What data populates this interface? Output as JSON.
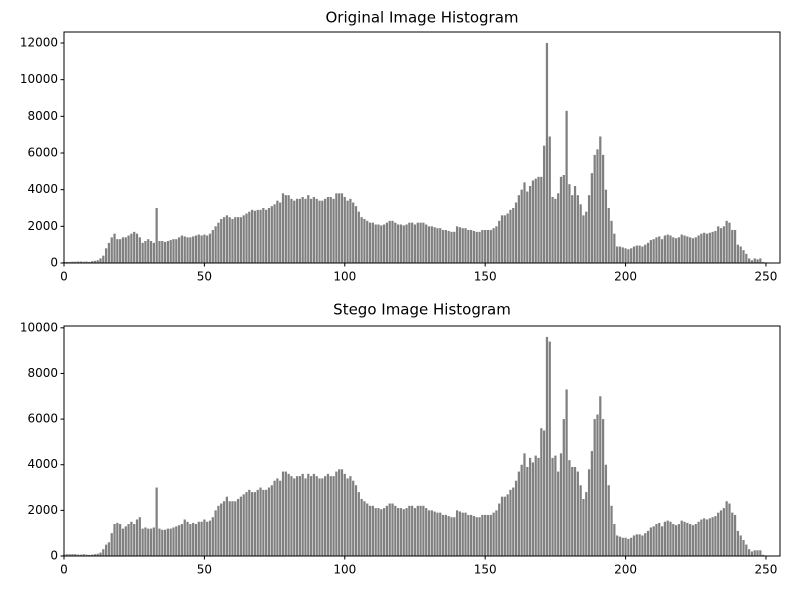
{
  "chart_data": [
    {
      "type": "bar",
      "title": "Original Image Histogram",
      "color": "#808080",
      "x": [
        0,
        1,
        2,
        3,
        4,
        5,
        6,
        7,
        8,
        9,
        10,
        11,
        12,
        13,
        14,
        15,
        16,
        17,
        18,
        19,
        20,
        21,
        22,
        23,
        24,
        25,
        26,
        27,
        28,
        29,
        30,
        31,
        32,
        33,
        34,
        35,
        36,
        37,
        38,
        39,
        40,
        41,
        42,
        43,
        44,
        45,
        46,
        47,
        48,
        49,
        50,
        51,
        52,
        53,
        54,
        55,
        56,
        57,
        58,
        59,
        60,
        61,
        62,
        63,
        64,
        65,
        66,
        67,
        68,
        69,
        70,
        71,
        72,
        73,
        74,
        75,
        76,
        77,
        78,
        79,
        80,
        81,
        82,
        83,
        84,
        85,
        86,
        87,
        88,
        89,
        90,
        91,
        92,
        93,
        94,
        95,
        96,
        97,
        98,
        99,
        100,
        101,
        102,
        103,
        104,
        105,
        106,
        107,
        108,
        109,
        110,
        111,
        112,
        113,
        114,
        115,
        116,
        117,
        118,
        119,
        120,
        121,
        122,
        123,
        124,
        125,
        126,
        127,
        128,
        129,
        130,
        131,
        132,
        133,
        134,
        135,
        136,
        137,
        138,
        139,
        140,
        141,
        142,
        143,
        144,
        145,
        146,
        147,
        148,
        149,
        150,
        151,
        152,
        153,
        154,
        155,
        156,
        157,
        158,
        159,
        160,
        161,
        162,
        163,
        164,
        165,
        166,
        167,
        168,
        169,
        170,
        171,
        172,
        173,
        174,
        175,
        176,
        177,
        178,
        179,
        180,
        181,
        182,
        183,
        184,
        185,
        186,
        187,
        188,
        189,
        190,
        191,
        192,
        193,
        194,
        195,
        196,
        197,
        198,
        199,
        200,
        201,
        202,
        203,
        204,
        205,
        206,
        207,
        208,
        209,
        210,
        211,
        212,
        213,
        214,
        215,
        216,
        217,
        218,
        219,
        220,
        221,
        222,
        223,
        224,
        225,
        226,
        227,
        228,
        229,
        230,
        231,
        232,
        233,
        234,
        235,
        236,
        237,
        238,
        239,
        240,
        241,
        242,
        243,
        244,
        245,
        246,
        247,
        248,
        249,
        250,
        251,
        252,
        253,
        254,
        255
      ],
      "values": [
        50,
        60,
        60,
        70,
        70,
        80,
        80,
        70,
        80,
        60,
        100,
        120,
        150,
        250,
        400,
        800,
        1100,
        1400,
        1600,
        1300,
        1300,
        1400,
        1400,
        1500,
        1600,
        1700,
        1600,
        1400,
        1100,
        1200,
        1300,
        1200,
        1100,
        3000,
        1200,
        1200,
        1150,
        1200,
        1250,
        1300,
        1300,
        1400,
        1500,
        1450,
        1400,
        1400,
        1450,
        1500,
        1550,
        1500,
        1550,
        1500,
        1600,
        1800,
        2000,
        2200,
        2400,
        2500,
        2600,
        2500,
        2400,
        2500,
        2500,
        2500,
        2600,
        2700,
        2800,
        2900,
        2850,
        2900,
        2900,
        3000,
        2900,
        3000,
        3100,
        3200,
        3400,
        3300,
        3800,
        3700,
        3700,
        3500,
        3400,
        3500,
        3500,
        3600,
        3500,
        3700,
        3500,
        3600,
        3500,
        3400,
        3400,
        3500,
        3600,
        3600,
        3500,
        3800,
        3800,
        3800,
        3600,
        3400,
        3500,
        3300,
        3100,
        2800,
        2500,
        2400,
        2300,
        2200,
        2200,
        2100,
        2100,
        2050,
        2100,
        2200,
        2300,
        2300,
        2200,
        2100,
        2100,
        2050,
        2100,
        2200,
        2200,
        2100,
        2200,
        2200,
        2200,
        2100,
        2000,
        2000,
        1950,
        1900,
        1900,
        1800,
        1800,
        1750,
        1700,
        1700,
        2000,
        1950,
        1900,
        1900,
        1800,
        1800,
        1750,
        1700,
        1700,
        1800,
        1800,
        1800,
        1800,
        1900,
        2000,
        2300,
        2600,
        2600,
        2700,
        2900,
        3000,
        3300,
        3700,
        4000,
        4400,
        3900,
        4200,
        4500,
        4600,
        4700,
        4700,
        6400,
        12000,
        6900,
        3600,
        3500,
        3800,
        4700,
        4800,
        8300,
        4300,
        3700,
        4200,
        3700,
        3200,
        2600,
        2800,
        3700,
        4900,
        5900,
        6200,
        6900,
        5900,
        4000,
        3000,
        2300,
        1600,
        900,
        900,
        850,
        800,
        750,
        800,
        900,
        950,
        950,
        900,
        1000,
        1100,
        1250,
        1300,
        1400,
        1450,
        1300,
        1500,
        1550,
        1500,
        1400,
        1350,
        1400,
        1550,
        1500,
        1450,
        1400,
        1350,
        1400,
        1500,
        1600,
        1650,
        1600,
        1650,
        1700,
        1750,
        2000,
        1900,
        2000,
        2300,
        2200,
        1800,
        1800,
        1000,
        900,
        700,
        500,
        250,
        150,
        250,
        200,
        250,
        50,
        30,
        0,
        0,
        0,
        0,
        0
      ],
      "xlim": [
        0,
        255
      ],
      "xticks": [
        0,
        50,
        100,
        150,
        200,
        250
      ],
      "ylim": [
        0,
        12600
      ],
      "yticks": [
        0,
        2000,
        4000,
        6000,
        8000,
        10000,
        12000
      ]
    },
    {
      "type": "bar",
      "title": "Stego Image Histogram",
      "color": "#808080",
      "x": [
        0,
        1,
        2,
        3,
        4,
        5,
        6,
        7,
        8,
        9,
        10,
        11,
        12,
        13,
        14,
        15,
        16,
        17,
        18,
        19,
        20,
        21,
        22,
        23,
        24,
        25,
        26,
        27,
        28,
        29,
        30,
        31,
        32,
        33,
        34,
        35,
        36,
        37,
        38,
        39,
        40,
        41,
        42,
        43,
        44,
        45,
        46,
        47,
        48,
        49,
        50,
        51,
        52,
        53,
        54,
        55,
        56,
        57,
        58,
        59,
        60,
        61,
        62,
        63,
        64,
        65,
        66,
        67,
        68,
        69,
        70,
        71,
        72,
        73,
        74,
        75,
        76,
        77,
        78,
        79,
        80,
        81,
        82,
        83,
        84,
        85,
        86,
        87,
        88,
        89,
        90,
        91,
        92,
        93,
        94,
        95,
        96,
        97,
        98,
        99,
        100,
        101,
        102,
        103,
        104,
        105,
        106,
        107,
        108,
        109,
        110,
        111,
        112,
        113,
        114,
        115,
        116,
        117,
        118,
        119,
        120,
        121,
        122,
        123,
        124,
        125,
        126,
        127,
        128,
        129,
        130,
        131,
        132,
        133,
        134,
        135,
        136,
        137,
        138,
        139,
        140,
        141,
        142,
        143,
        144,
        145,
        146,
        147,
        148,
        149,
        150,
        151,
        152,
        153,
        154,
        155,
        156,
        157,
        158,
        159,
        160,
        161,
        162,
        163,
        164,
        165,
        166,
        167,
        168,
        169,
        170,
        171,
        172,
        173,
        174,
        175,
        176,
        177,
        178,
        179,
        180,
        181,
        182,
        183,
        184,
        185,
        186,
        187,
        188,
        189,
        190,
        191,
        192,
        193,
        194,
        195,
        196,
        197,
        198,
        199,
        200,
        201,
        202,
        203,
        204,
        205,
        206,
        207,
        208,
        209,
        210,
        211,
        212,
        213,
        214,
        215,
        216,
        217,
        218,
        219,
        220,
        221,
        222,
        223,
        224,
        225,
        226,
        227,
        228,
        229,
        230,
        231,
        232,
        233,
        234,
        235,
        236,
        237,
        238,
        239,
        240,
        241,
        242,
        243,
        244,
        245,
        246,
        247,
        248,
        249,
        250,
        251,
        252,
        253,
        254,
        255
      ],
      "values": [
        50,
        80,
        80,
        80,
        80,
        60,
        60,
        80,
        60,
        50,
        60,
        80,
        100,
        150,
        300,
        500,
        600,
        1000,
        1400,
        1450,
        1400,
        1200,
        1300,
        1400,
        1500,
        1400,
        1600,
        1700,
        1200,
        1250,
        1200,
        1200,
        1250,
        3000,
        1200,
        1150,
        1150,
        1200,
        1200,
        1250,
        1300,
        1350,
        1400,
        1600,
        1500,
        1400,
        1450,
        1400,
        1500,
        1500,
        1600,
        1500,
        1550,
        1700,
        2000,
        2200,
        2300,
        2400,
        2600,
        2400,
        2400,
        2400,
        2500,
        2600,
        2700,
        2800,
        2900,
        2800,
        2800,
        2900,
        3000,
        2900,
        2900,
        3000,
        3100,
        3300,
        3400,
        3300,
        3700,
        3700,
        3600,
        3500,
        3400,
        3500,
        3500,
        3600,
        3400,
        3600,
        3500,
        3600,
        3500,
        3400,
        3400,
        3500,
        3600,
        3500,
        3500,
        3700,
        3800,
        3800,
        3600,
        3400,
        3500,
        3300,
        3100,
        2800,
        2500,
        2400,
        2300,
        2200,
        2200,
        2100,
        2100,
        2050,
        2100,
        2200,
        2300,
        2300,
        2200,
        2100,
        2100,
        2050,
        2100,
        2200,
        2200,
        2100,
        2200,
        2200,
        2200,
        2100,
        2000,
        2000,
        1950,
        1900,
        1900,
        1800,
        1800,
        1750,
        1700,
        1700,
        2000,
        1950,
        1900,
        1900,
        1800,
        1800,
        1750,
        1700,
        1700,
        1800,
        1800,
        1800,
        1800,
        1900,
        2000,
        2300,
        2600,
        2600,
        2700,
        2900,
        3000,
        3300,
        3700,
        4000,
        4500,
        3900,
        4300,
        4100,
        4400,
        4300,
        5600,
        5500,
        9600,
        9400,
        4300,
        4400,
        3700,
        4500,
        6000,
        7300,
        4200,
        3900,
        3900,
        3700,
        3100,
        2500,
        2800,
        3800,
        4600,
        6000,
        6200,
        7000,
        6000,
        4000,
        3100,
        2200,
        1400,
        900,
        850,
        800,
        800,
        750,
        800,
        900,
        950,
        950,
        900,
        1000,
        1100,
        1250,
        1300,
        1400,
        1450,
        1300,
        1500,
        1550,
        1500,
        1400,
        1350,
        1400,
        1550,
        1500,
        1450,
        1400,
        1350,
        1400,
        1500,
        1600,
        1650,
        1600,
        1650,
        1700,
        1750,
        1900,
        2000,
        2100,
        2400,
        2300,
        1900,
        1800,
        1100,
        900,
        700,
        500,
        300,
        200,
        250,
        250,
        250,
        50,
        0,
        0,
        0,
        0,
        0,
        0
      ],
      "xlim": [
        0,
        255
      ],
      "xticks": [
        0,
        50,
        100,
        150,
        200,
        250
      ],
      "ylim": [
        0,
        10080
      ],
      "yticks": [
        0,
        2000,
        4000,
        6000,
        8000,
        10000
      ]
    }
  ]
}
